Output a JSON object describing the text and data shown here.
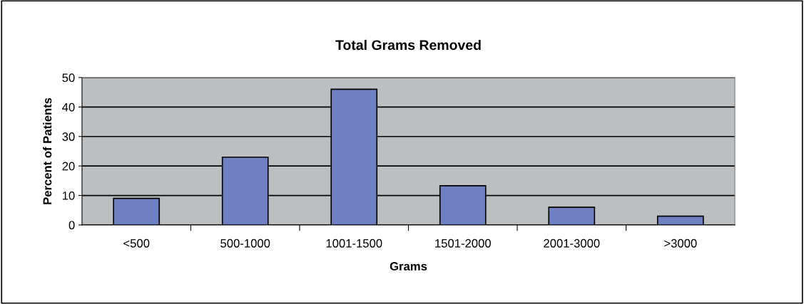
{
  "chart_data": {
    "type": "bar",
    "title": "Total Grams Removed",
    "xlabel": "Grams",
    "ylabel": "Percent of Patients",
    "categories": [
      "<500",
      "500-1000",
      "1001-1500",
      "1501-2000",
      "2001-3000",
      ">3000"
    ],
    "values": [
      9,
      23,
      46,
      13.3,
      6,
      3
    ],
    "color": "#6f80c2",
    "ylim": [
      0,
      50
    ],
    "yticks": [
      0,
      10,
      20,
      30,
      40,
      50
    ],
    "grid": "y",
    "legend": false
  }
}
